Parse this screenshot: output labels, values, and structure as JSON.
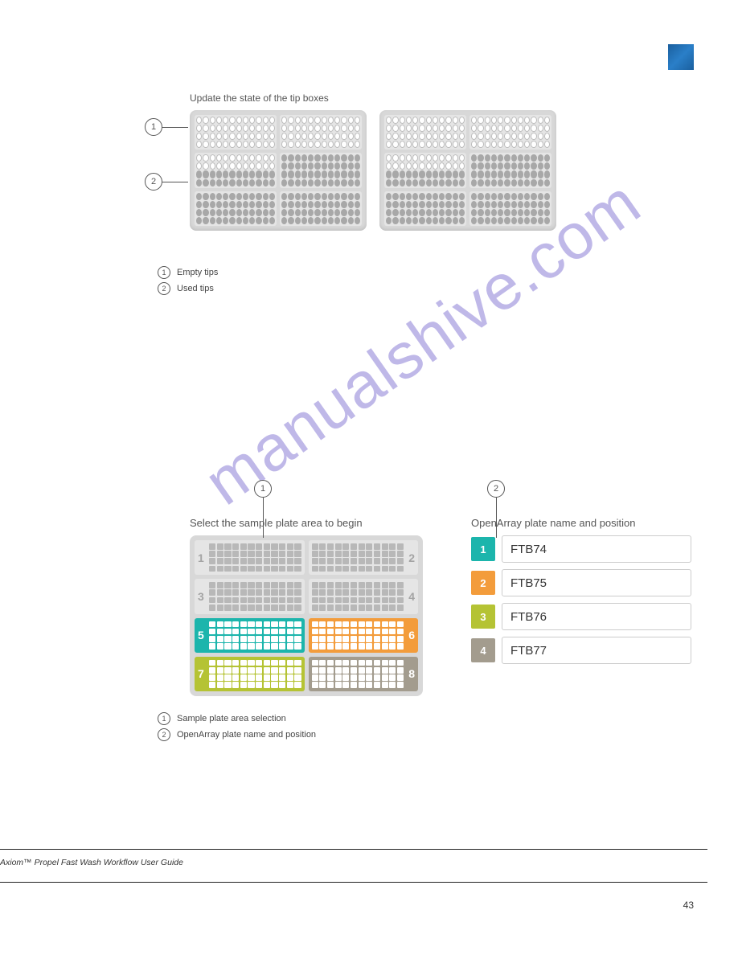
{
  "page": {
    "number": "43",
    "product_line": "Axiom™ Propel Fast Wash Workflow User Guide",
    "badge_gradient": [
      "#1a5f9e",
      "#2a7fc8"
    ]
  },
  "watermark": {
    "text": "manualshive.com"
  },
  "tipboxes": {
    "title": "Update the state of the tip boxes",
    "legend": [
      {
        "num": "1",
        "text": "Empty tips"
      },
      {
        "num": "2",
        "text": "Used tips"
      }
    ],
    "boxes": [
      {
        "cells": [
          {
            "state": "empty"
          },
          {
            "state": "empty"
          },
          {
            "state": "partial"
          },
          {
            "state": "used"
          },
          {
            "state": "used"
          },
          {
            "state": "used"
          }
        ]
      },
      {
        "cells": [
          {
            "state": "empty"
          },
          {
            "state": "empty"
          },
          {
            "state": "partial"
          },
          {
            "state": "used"
          },
          {
            "state": "used"
          },
          {
            "state": "used"
          }
        ]
      }
    ],
    "dot_colors": {
      "empty": "#ffffff",
      "partial": "#cccccc",
      "used": "#a8a8a8"
    }
  },
  "sampleplate": {
    "title": "Select the sample plate area to begin",
    "callout": "1",
    "cells": [
      {
        "num": "1",
        "active": false,
        "side": "left",
        "color": "#e5e5e5"
      },
      {
        "num": "2",
        "active": false,
        "side": "right",
        "color": "#e5e5e5"
      },
      {
        "num": "3",
        "active": false,
        "side": "left",
        "color": "#e5e5e5"
      },
      {
        "num": "4",
        "active": false,
        "side": "right",
        "color": "#e5e5e5"
      },
      {
        "num": "5",
        "active": true,
        "side": "left",
        "color": "#1cb5ac"
      },
      {
        "num": "6",
        "active": true,
        "side": "right",
        "color": "#f39c3b"
      },
      {
        "num": "7",
        "active": true,
        "side": "left",
        "color": "#b5c334"
      },
      {
        "num": "8",
        "active": true,
        "side": "right",
        "color": "#a39c8e"
      }
    ]
  },
  "openarray": {
    "title": "OpenArray plate name and position",
    "callout": "2",
    "rows": [
      {
        "badge": "1",
        "color": "#1cb5ac",
        "value": "FTB74"
      },
      {
        "badge": "2",
        "color": "#f39c3b",
        "value": "FTB75"
      },
      {
        "badge": "3",
        "color": "#b5c334",
        "value": "FTB76"
      },
      {
        "badge": "4",
        "color": "#a39c8e",
        "value": "FTB77"
      }
    ]
  },
  "fig2_legend": [
    {
      "num": "1",
      "text": "Sample plate area selection"
    },
    {
      "num": "2",
      "text": "OpenArray plate name and position"
    }
  ]
}
